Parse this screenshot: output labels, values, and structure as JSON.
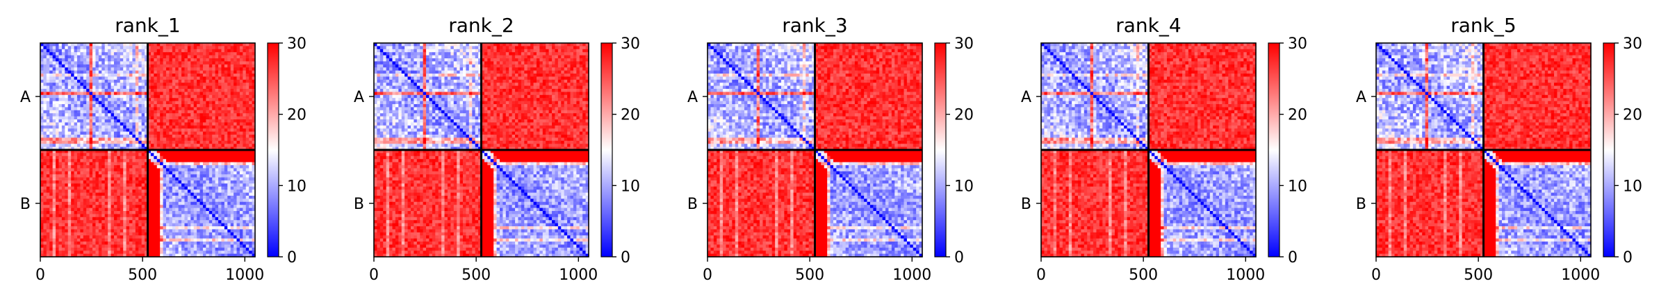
{
  "chart_data": [
    {
      "type": "heatmap",
      "title": "rank_1",
      "xlim": [
        0,
        1050
      ],
      "ylim": [
        1050,
        0
      ],
      "x_ticks": [
        "0",
        "500",
        "1000"
      ],
      "y_ticks": [
        "A",
        "B"
      ],
      "chains": [
        {
          "name": "A",
          "start": 0,
          "end": 525
        },
        {
          "name": "B",
          "start": 525,
          "end": 1050
        }
      ],
      "colorbar": {
        "min": 0,
        "max": 30,
        "ticks": [
          "0",
          "10",
          "20",
          "30"
        ],
        "colormap": "bwr"
      },
      "values": {
        "intra_chain_A": 9,
        "intra_chain_B": 8,
        "inter_chain": 30,
        "diagonal": 0
      }
    },
    {
      "type": "heatmap",
      "title": "rank_2",
      "xlim": [
        0,
        1050
      ],
      "ylim": [
        1050,
        0
      ],
      "x_ticks": [
        "0",
        "500",
        "1000"
      ],
      "y_ticks": [
        "A",
        "B"
      ],
      "chains": [
        {
          "name": "A",
          "start": 0,
          "end": 525
        },
        {
          "name": "B",
          "start": 525,
          "end": 1050
        }
      ],
      "colorbar": {
        "min": 0,
        "max": 30,
        "ticks": [
          "0",
          "10",
          "20",
          "30"
        ],
        "colormap": "bwr"
      },
      "values": {
        "intra_chain_A": 9,
        "intra_chain_B": 8,
        "inter_chain": 30,
        "diagonal": 0
      }
    },
    {
      "type": "heatmap",
      "title": "rank_3",
      "xlim": [
        0,
        1050
      ],
      "ylim": [
        1050,
        0
      ],
      "x_ticks": [
        "0",
        "500",
        "1000"
      ],
      "y_ticks": [
        "A",
        "B"
      ],
      "chains": [
        {
          "name": "A",
          "start": 0,
          "end": 525
        },
        {
          "name": "B",
          "start": 525,
          "end": 1050
        }
      ],
      "colorbar": {
        "min": 0,
        "max": 30,
        "ticks": [
          "0",
          "10",
          "20",
          "30"
        ],
        "colormap": "bwr"
      },
      "values": {
        "intra_chain_A": 9,
        "intra_chain_B": 8,
        "inter_chain": 30,
        "diagonal": 0
      }
    },
    {
      "type": "heatmap",
      "title": "rank_4",
      "xlim": [
        0,
        1050
      ],
      "ylim": [
        1050,
        0
      ],
      "x_ticks": [
        "0",
        "500",
        "1000"
      ],
      "y_ticks": [
        "A",
        "B"
      ],
      "chains": [
        {
          "name": "A",
          "start": 0,
          "end": 525
        },
        {
          "name": "B",
          "start": 525,
          "end": 1050
        }
      ],
      "colorbar": {
        "min": 0,
        "max": 30,
        "ticks": [
          "0",
          "10",
          "20",
          "30"
        ],
        "colormap": "bwr"
      },
      "values": {
        "intra_chain_A": 9,
        "intra_chain_B": 8,
        "inter_chain": 30,
        "diagonal": 0
      }
    },
    {
      "type": "heatmap",
      "title": "rank_5",
      "xlim": [
        0,
        1050
      ],
      "ylim": [
        1050,
        0
      ],
      "x_ticks": [
        "0",
        "500",
        "1000"
      ],
      "y_ticks": [
        "A",
        "B"
      ],
      "chains": [
        {
          "name": "A",
          "start": 0,
          "end": 525
        },
        {
          "name": "B",
          "start": 525,
          "end": 1050
        }
      ],
      "colorbar": {
        "min": 0,
        "max": 30,
        "ticks": [
          "0",
          "10",
          "20",
          "30"
        ],
        "colormap": "bwr"
      },
      "values": {
        "intra_chain_A": 9,
        "intra_chain_B": 8,
        "inter_chain": 30,
        "diagonal": 0
      }
    }
  ]
}
